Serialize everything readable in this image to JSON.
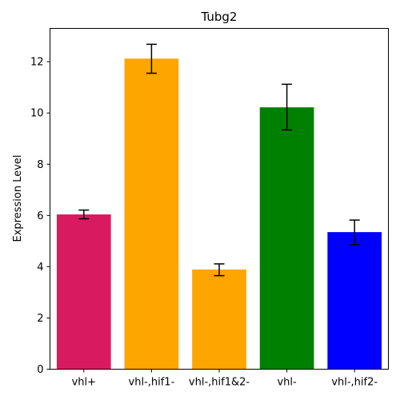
{
  "chart_data": {
    "type": "bar",
    "title": "Tubg2",
    "xlabel": "",
    "ylabel": "Expression Level",
    "ylim": [
      0,
      13.3
    ],
    "yticks": [
      0,
      2,
      4,
      6,
      8,
      10,
      12
    ],
    "grid": false,
    "legend": "none",
    "categories": [
      "vhl+",
      "vhl-,hif1-",
      "vhl-,hif1&2-",
      "vhl-",
      "vhl-,hif2-"
    ],
    "values": [
      6.04,
      12.12,
      3.89,
      10.22,
      5.35
    ],
    "error_low": [
      5.87,
      11.55,
      3.65,
      9.34,
      4.86
    ],
    "error_high": [
      6.21,
      12.68,
      4.11,
      11.12,
      5.82
    ],
    "colors": [
      "#d81b60",
      "#ffa500",
      "#ffa500",
      "#008000",
      "#0000ff"
    ]
  }
}
